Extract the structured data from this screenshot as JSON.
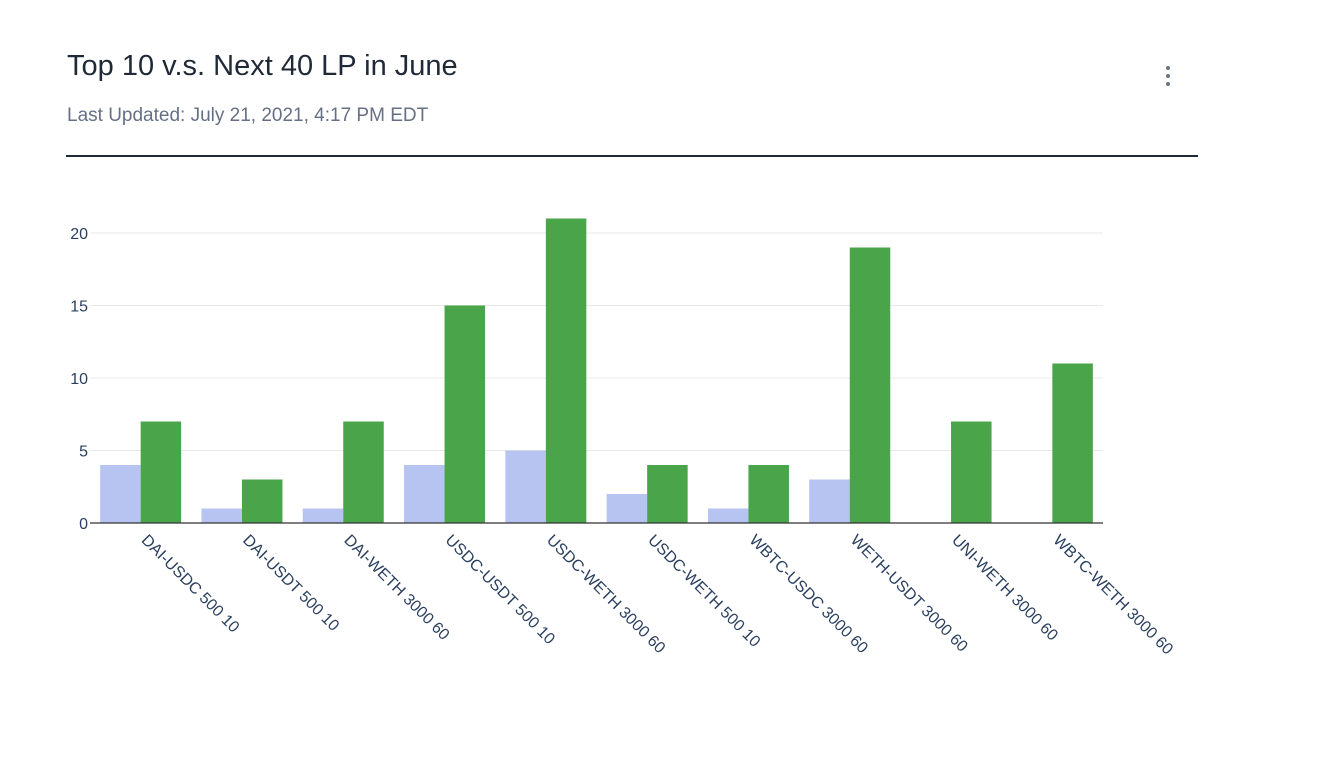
{
  "header": {
    "title": "Top 10 v.s. Next 40 LP in June",
    "subtitle": "Last Updated: July 21, 2021, 4:17 PM EDT",
    "menu_icon": "more-vertical-icon"
  },
  "colors": {
    "series_top10": "#b7c4f2",
    "series_next40": "#49a44a",
    "grid": "#e8e8e8",
    "axis": "#333333"
  },
  "chart_data": {
    "type": "bar",
    "title": "",
    "xlabel": "",
    "ylabel": "",
    "ylim": [
      0,
      23
    ],
    "yticks": [
      0,
      5,
      10,
      15,
      20
    ],
    "grid": true,
    "categories": [
      "DAI-USDC 500 10",
      "DAI-USDT 500 10",
      "DAI-WETH 3000 60",
      "USDC-USDT 500 10",
      "USDC-WETH 3000 60",
      "USDC-WETH 500 10",
      "WBTC-USDC 3000 60",
      "WETH-USDT 3000 60",
      "UNI-WETH 3000 60",
      "WBTC-WETH 3000 60"
    ],
    "series": [
      {
        "values": [
          4,
          1,
          1,
          4,
          5,
          2,
          1,
          3,
          0,
          0
        ]
      },
      {
        "values": [
          7,
          3,
          7,
          15,
          21,
          4,
          4,
          19,
          7,
          11
        ]
      }
    ]
  }
}
